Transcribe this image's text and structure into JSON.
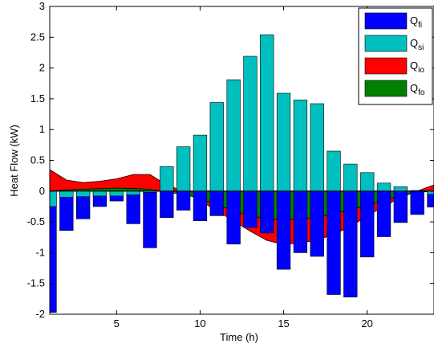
{
  "chart_data": {
    "type": "bar",
    "xlabel": "Time (h)",
    "ylabel": "Heat Flow (kW)",
    "xlim": [
      1,
      24
    ],
    "ylim": [
      -2,
      3
    ],
    "xticks": [
      5,
      10,
      15,
      20
    ],
    "yticks": [
      -2,
      -1.5,
      -1,
      -0.5,
      0,
      0.5,
      1,
      1.5,
      2,
      2.5,
      3
    ],
    "grid": false,
    "legend_position": "top-right",
    "hours": [
      1,
      2,
      3,
      4,
      5,
      6,
      7,
      8,
      9,
      10,
      11,
      12,
      13,
      14,
      15,
      16,
      17,
      18,
      19,
      20,
      21,
      22,
      23,
      24
    ],
    "series": [
      {
        "key": "Q_fi",
        "label_main": "Q",
        "label_sub": "fi",
        "kind": "bar",
        "color": "#0000ff",
        "values": [
          -1.97,
          -0.64,
          -0.45,
          -0.25,
          -0.16,
          -0.53,
          -0.92,
          -0.43,
          -0.31,
          -0.48,
          -0.4,
          -0.86,
          -0.59,
          -0.68,
          -1.27,
          -1.0,
          -1.06,
          -1.68,
          -1.72,
          -1.07,
          -0.74,
          -0.51,
          -0.38,
          -0.26
        ]
      },
      {
        "key": "Q_si",
        "label_main": "Q",
        "label_sub": "si",
        "kind": "bar",
        "color": "#00bfbf",
        "values": [
          -0.25,
          -0.1,
          -0.09,
          -0.08,
          -0.08,
          -0.06,
          -0.02,
          0.4,
          0.72,
          0.91,
          1.44,
          1.81,
          2.19,
          2.54,
          1.59,
          1.48,
          1.42,
          0.65,
          0.44,
          0.3,
          0.13,
          0.07,
          0.01,
          -0.05
        ]
      },
      {
        "key": "Q_io",
        "label_main": "Q",
        "label_sub": "io",
        "kind": "area",
        "color": "#ff0000",
        "values": [
          0.35,
          0.18,
          0.14,
          0.16,
          0.2,
          0.27,
          0.27,
          0.1,
          0.0,
          -0.15,
          -0.32,
          -0.48,
          -0.65,
          -0.8,
          -0.87,
          -0.84,
          -0.8,
          -0.7,
          -0.58,
          -0.4,
          -0.25,
          -0.1,
          0.0,
          0.1
        ]
      },
      {
        "key": "Q_fo",
        "label_main": "Q",
        "label_sub": "fo",
        "kind": "area",
        "color": "#008000",
        "values": [
          0.0,
          0.02,
          0.03,
          0.04,
          0.05,
          0.04,
          0.03,
          -0.02,
          -0.05,
          -0.12,
          -0.22,
          -0.32,
          -0.4,
          -0.45,
          -0.47,
          -0.45,
          -0.43,
          -0.37,
          -0.3,
          -0.23,
          -0.15,
          -0.07,
          -0.02,
          0.0
        ]
      }
    ]
  }
}
